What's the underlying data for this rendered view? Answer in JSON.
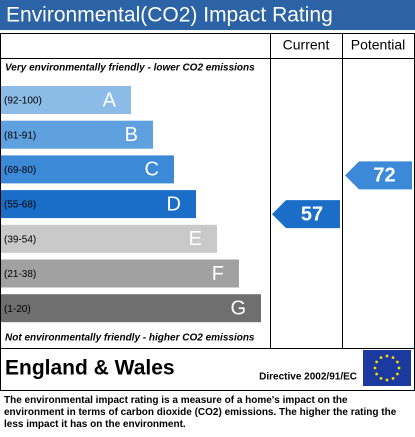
{
  "title": "Environmental(CO2) Impact Rating",
  "columns": {
    "current": "Current",
    "potential": "Potential"
  },
  "top_note": "Very environmentally friendly - lower CO2 emissions",
  "bottom_note": "Not environmentally friendly - higher CO2 emissions",
  "bands": [
    {
      "range": "(92-100)",
      "letter": "A",
      "color": "#8cbbe8"
    },
    {
      "range": "(81-91)",
      "letter": "B",
      "color": "#5fa1df"
    },
    {
      "range": "(69-80)",
      "letter": "C",
      "color": "#3b89d7"
    },
    {
      "range": "(55-68)",
      "letter": "D",
      "color": "#1b6ec8"
    },
    {
      "range": "(39-54)",
      "letter": "E",
      "color": "#c9c9c9"
    },
    {
      "range": "(21-38)",
      "letter": "F",
      "color": "#a1a1a1"
    },
    {
      "range": "(1-20)",
      "letter": "G",
      "color": "#6f6f6f"
    }
  ],
  "current": {
    "value": 57,
    "color": "#1b6ec8"
  },
  "potential": {
    "value": 72,
    "color": "#3b89d7"
  },
  "footer": {
    "region": "England & Wales",
    "directive": "Directive 2002/91/EC"
  },
  "description": "The environmental impact rating is a measure of a home's impact on the environment in terms of carbon dioxide (CO2) emissions. The higher the rating the less impact it has on the environment."
}
